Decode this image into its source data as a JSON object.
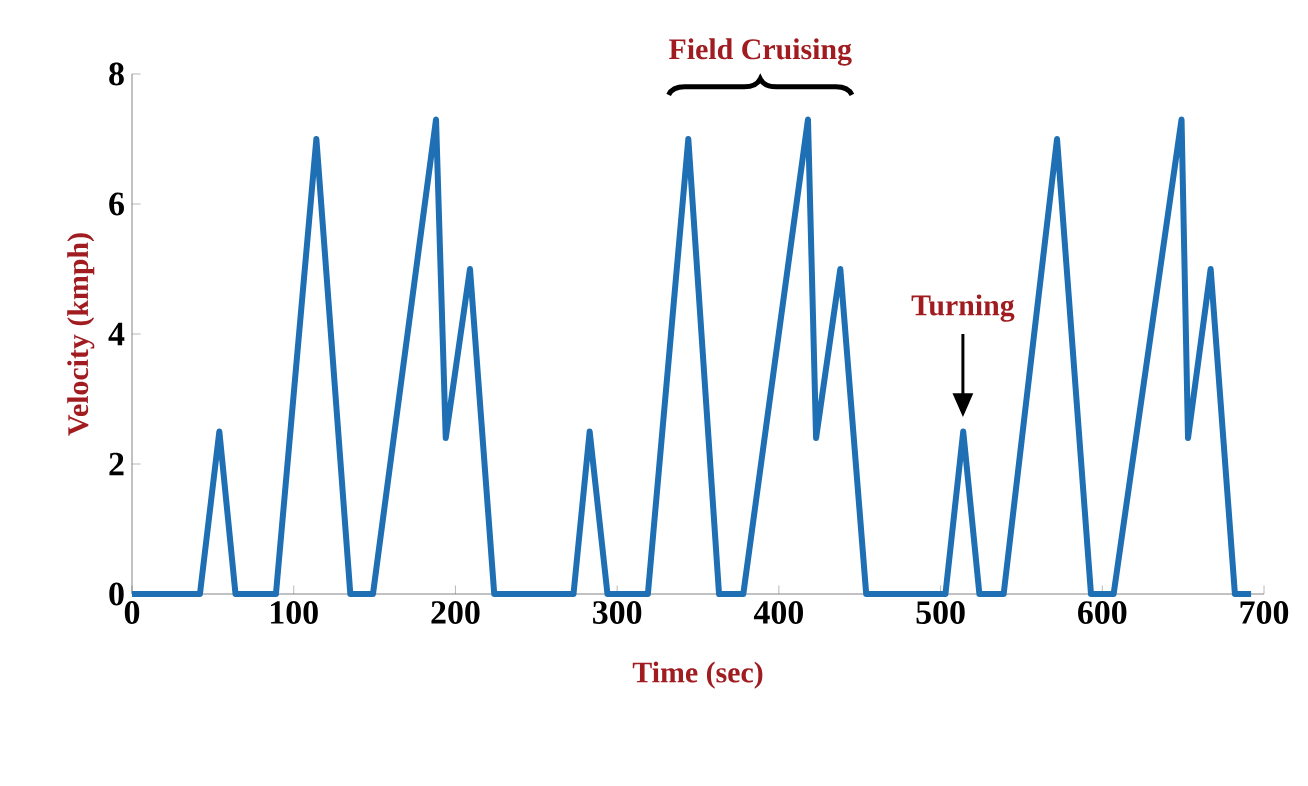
{
  "chart_data": {
    "type": "line",
    "xlabel": "Time (sec)",
    "ylabel": "Velocity (kmph)",
    "x": [
      0,
      42,
      54,
      64,
      89,
      114,
      135,
      149,
      188,
      194,
      209,
      224,
      273,
      283,
      294,
      319,
      344,
      363,
      378,
      418,
      423,
      438,
      454,
      503,
      514,
      524,
      539,
      572,
      593,
      607,
      649,
      653,
      667,
      682,
      692
    ],
    "series": [
      {
        "color": "#1f6fb4",
        "values": [
          0,
          0,
          2.5,
          0,
          0,
          7,
          0,
          0,
          7.3,
          2.4,
          5,
          0,
          0,
          2.5,
          0,
          0,
          7,
          0,
          0,
          7.3,
          2.4,
          5,
          0,
          0,
          2.5,
          0,
          0,
          7,
          0,
          0,
          7.3,
          2.4,
          5,
          0,
          0
        ]
      }
    ],
    "xlim": [
      0,
      700
    ],
    "ylim": [
      0,
      8
    ],
    "xticks": [
      0,
      100,
      200,
      300,
      400,
      500,
      600,
      700
    ],
    "yticks": [
      0,
      2,
      4,
      6,
      8
    ],
    "grid": false,
    "marker": "none",
    "line_style": "solid",
    "annotations": [
      "Field Cruising",
      "Turning"
    ]
  }
}
